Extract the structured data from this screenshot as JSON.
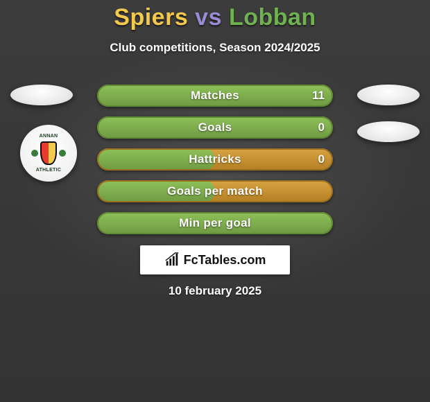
{
  "header": {
    "title_left": "Spiers",
    "title_vs": " vs ",
    "title_right": "Lobban",
    "title_color_left": "#f2c94c",
    "title_color_vs": "#9b8bd6",
    "title_color_right": "#6fb24f",
    "subtitle": "Club competitions, Season 2024/2025"
  },
  "crest": {
    "top_text": "ANNAN",
    "bottom_text": "ATHLETIC",
    "shield_left": "#e63b2e",
    "shield_right": "#f2c94c",
    "shield_border": "#0b0b0b",
    "thistle_color": "#3a7d3a"
  },
  "bars_config": {
    "track_color": "#c9902f",
    "fill_color": "#7aa84a",
    "fill_gradient_top": "#8fc158",
    "fill_gradient_bottom": "#6f9a43",
    "track_gradient_top": "#d8a341",
    "track_gradient_bottom": "#b47f24",
    "border_color": "#5f8a34",
    "track_border_color": "#9a6f1e"
  },
  "bars": [
    {
      "label": "Matches",
      "left": "",
      "right": "11",
      "fill_pct": 1
    },
    {
      "label": "Goals",
      "left": "",
      "right": "0",
      "fill_pct": 1
    },
    {
      "label": "Hattricks",
      "left": "",
      "right": "0",
      "fill_pct": 0.5
    },
    {
      "label": "Goals per match",
      "left": "",
      "right": "",
      "fill_pct": 0.5
    },
    {
      "label": "Min per goal",
      "left": "",
      "right": "",
      "fill_pct": 1
    }
  ],
  "branding": {
    "text": "FcTables.com",
    "icon_color": "#111111"
  },
  "footer": {
    "date": "10 february 2025"
  }
}
